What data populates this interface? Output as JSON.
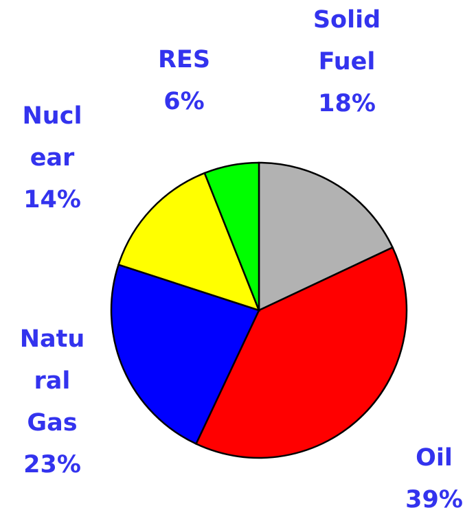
{
  "chart_data": {
    "type": "pie",
    "categories": [
      "Solid Fuel",
      "Oil",
      "Natural Gas",
      "Nuclear",
      "RES"
    ],
    "values": [
      18,
      39,
      23,
      14,
      6
    ],
    "value_labels": [
      "18%",
      "39%",
      "23%",
      "14%",
      "6%"
    ],
    "colors": [
      "#b2b2b2",
      "#ff0000",
      "#0000ff",
      "#ffff00",
      "#00ff00"
    ]
  }
}
